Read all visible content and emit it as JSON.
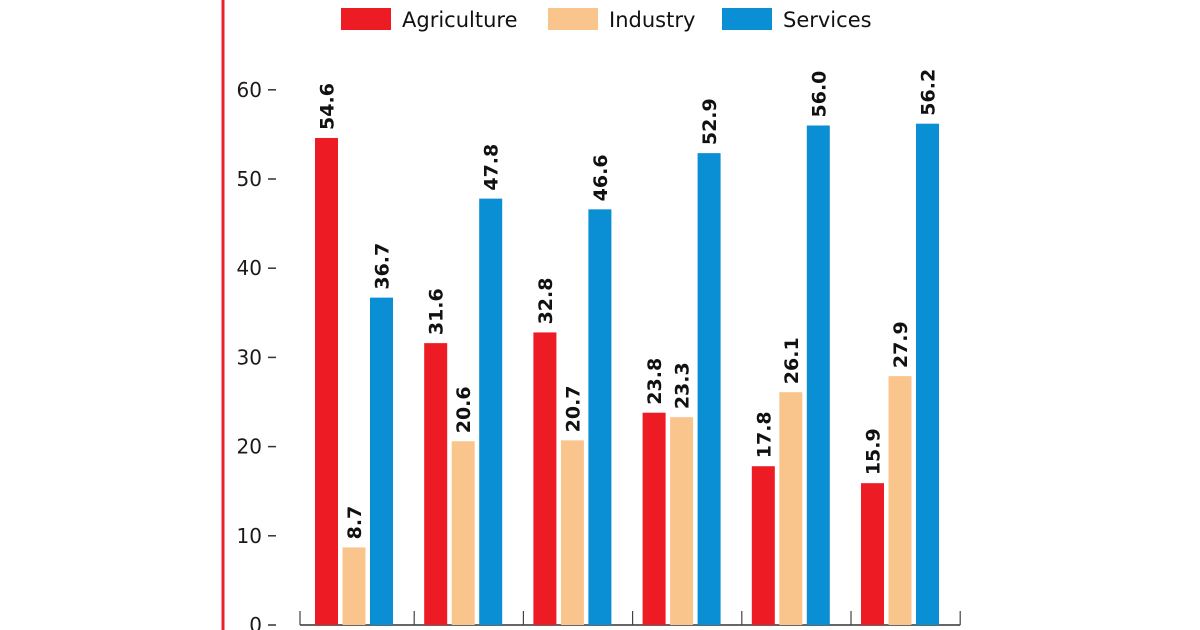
{
  "chart_data": {
    "type": "bar",
    "categories": [
      "",
      "",
      "",
      "",
      "",
      ""
    ],
    "series": [
      {
        "name": "Agriculture",
        "color": "#ed1c24",
        "values": [
          54.6,
          31.6,
          32.8,
          23.8,
          17.8,
          15.9
        ]
      },
      {
        "name": "Industry",
        "color": "#f9c58d",
        "values": [
          8.7,
          20.6,
          20.7,
          23.3,
          26.1,
          27.9
        ]
      },
      {
        "name": "Services",
        "color": "#0a8fd5",
        "values": [
          36.7,
          47.8,
          46.6,
          52.9,
          56.0,
          56.2
        ]
      }
    ],
    "value_labels": [
      [
        "54.6",
        "31.6",
        "32.8",
        "23.8",
        "17.8",
        "15.9"
      ],
      [
        "8.7",
        "20.6",
        "20.7",
        "23.3",
        "26.1",
        "27.9"
      ],
      [
        "36.7",
        "47.8",
        "46.6",
        "52.9",
        "56.0",
        "56.2"
      ]
    ],
    "yticks": [
      "0",
      "10",
      "20",
      "30",
      "40",
      "50",
      "60"
    ],
    "ylim": [
      0,
      60
    ],
    "title": "",
    "xlabel": "",
    "ylabel": "",
    "grid": false,
    "legend_position": "top",
    "accent_line_color": "#e8212b"
  }
}
